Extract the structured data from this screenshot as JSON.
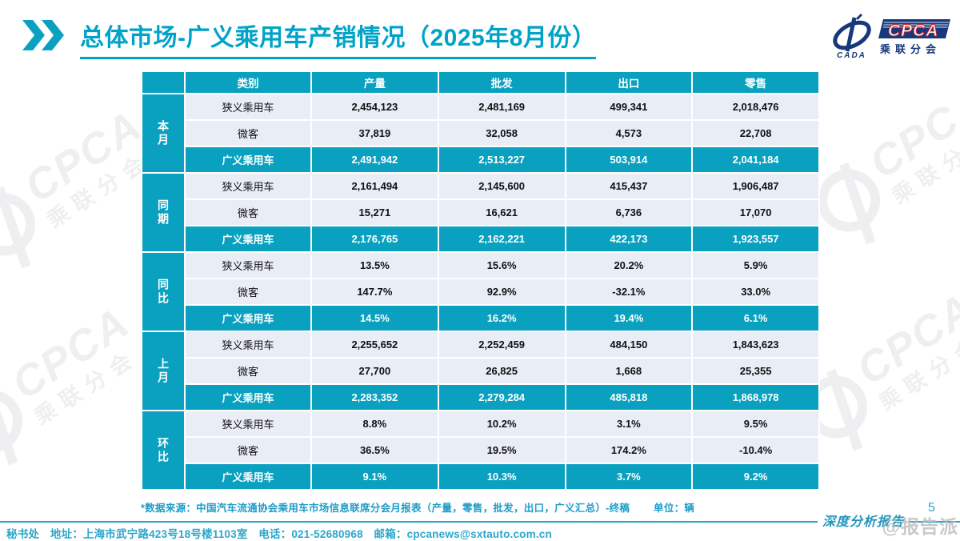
{
  "header": {
    "title": "总体市场-广义乘用车产销情况（2025年8月份）"
  },
  "brand": {
    "cpca": "CPCA",
    "sub": "乘联分会",
    "cada": "CADA"
  },
  "table": {
    "columns": [
      "类别",
      "产量",
      "批发",
      "出口",
      "零售"
    ],
    "groups": [
      {
        "label": "本月",
        "rows": [
          {
            "category": "狭义乘用车",
            "values": [
              "2,454,123",
              "2,481,169",
              "499,341",
              "2,018,476"
            ],
            "highlight": false
          },
          {
            "category": "微客",
            "values": [
              "37,819",
              "32,058",
              "4,573",
              "22,708"
            ],
            "highlight": false
          },
          {
            "category": "广义乘用车",
            "values": [
              "2,491,942",
              "2,513,227",
              "503,914",
              "2,041,184"
            ],
            "highlight": true
          }
        ]
      },
      {
        "label": "同期",
        "rows": [
          {
            "category": "狭义乘用车",
            "values": [
              "2,161,494",
              "2,145,600",
              "415,437",
              "1,906,487"
            ],
            "highlight": false
          },
          {
            "category": "微客",
            "values": [
              "15,271",
              "16,621",
              "6,736",
              "17,070"
            ],
            "highlight": false
          },
          {
            "category": "广义乘用车",
            "values": [
              "2,176,765",
              "2,162,221",
              "422,173",
              "1,923,557"
            ],
            "highlight": true
          }
        ]
      },
      {
        "label": "同比",
        "rows": [
          {
            "category": "狭义乘用车",
            "values": [
              "13.5%",
              "15.6%",
              "20.2%",
              "5.9%"
            ],
            "highlight": false
          },
          {
            "category": "微客",
            "values": [
              "147.7%",
              "92.9%",
              "-32.1%",
              "33.0%"
            ],
            "highlight": false
          },
          {
            "category": "广义乘用车",
            "values": [
              "14.5%",
              "16.2%",
              "19.4%",
              "6.1%"
            ],
            "highlight": true
          }
        ]
      },
      {
        "label": "上月",
        "rows": [
          {
            "category": "狭义乘用车",
            "values": [
              "2,255,652",
              "2,252,459",
              "484,150",
              "1,843,623"
            ],
            "highlight": false
          },
          {
            "category": "微客",
            "values": [
              "27,700",
              "26,825",
              "1,668",
              "25,355"
            ],
            "highlight": false
          },
          {
            "category": "广义乘用车",
            "values": [
              "2,283,352",
              "2,279,284",
              "485,818",
              "1,868,978"
            ],
            "highlight": true
          }
        ]
      },
      {
        "label": "环比",
        "rows": [
          {
            "category": "狭义乘用车",
            "values": [
              "8.8%",
              "10.2%",
              "3.1%",
              "9.5%"
            ],
            "highlight": false
          },
          {
            "category": "微客",
            "values": [
              "36.5%",
              "19.5%",
              "174.2%",
              "-10.4%"
            ],
            "highlight": false
          },
          {
            "category": "广义乘用车",
            "values": [
              "9.1%",
              "10.3%",
              "3.7%",
              "9.2%"
            ],
            "highlight": true
          }
        ]
      }
    ]
  },
  "notes": {
    "source": "*数据来源：中国汽车流通协会乘用车市场信息联席分会月报表（产量，零售，批发，出口，广义汇总）-终稿",
    "unit": "单位：辆"
  },
  "footer": {
    "left": "秘书处　地址：上海市武宁路423号18号楼1103室　电话：021-52680968　邮箱：cpcanews@sxtauto.com.cn",
    "right_label": "深度分析报告",
    "page_number": "5"
  },
  "watermark": {
    "reporter": "@报告派",
    "cpca": "CPCA",
    "sub": "乘联分会"
  },
  "colors": {
    "accent_teal": "#0aa1c0",
    "title_cyan": "#00a3c8",
    "row_light": "#e9edf6",
    "logo_blue": "#16387c",
    "logo_red": "#d42222",
    "footer_cyan": "#2aa6cb",
    "watermark_gray": "#efeff2"
  }
}
